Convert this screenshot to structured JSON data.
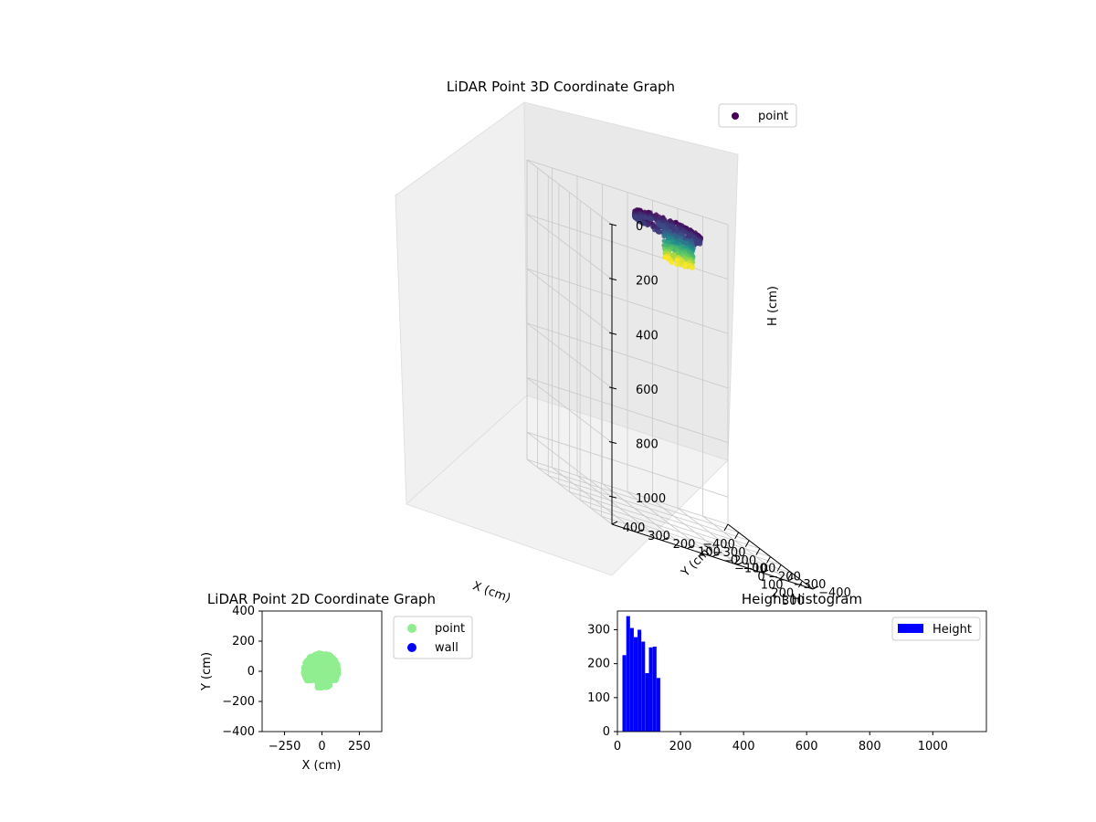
{
  "chart_data": [
    {
      "type": "scatter",
      "title": "LiDAR Point 3D Coordinate Graph",
      "xlabel": "X (cm)",
      "ylabel": "Y (cm)",
      "zlabel": "H (cm)",
      "xlim": [
        -400,
        400
      ],
      "ylim": [
        -400,
        400
      ],
      "zlim": [
        1100,
        0
      ],
      "x_ticks": [
        -400,
        -300,
        -200,
        -100,
        0,
        100,
        200,
        300
      ],
      "y_ticks": [
        -400,
        -300,
        -200,
        -100,
        0,
        100,
        200,
        300,
        400
      ],
      "z_ticks": [
        0,
        200,
        400,
        600,
        800,
        1000
      ],
      "grid": true,
      "legend": {
        "placement": "top-right",
        "entries": [
          {
            "label": "point",
            "color": "#440154"
          }
        ]
      },
      "colormap": "viridis",
      "series": [
        {
          "name": "point",
          "shape": "ring-with-stem",
          "x_range": [
            -130,
            130
          ],
          "y_range": [
            -100,
            120
          ],
          "h_range": [
            0,
            130
          ]
        }
      ]
    },
    {
      "type": "scatter",
      "title": "LiDAR Point 2D Coordinate Graph",
      "xlabel": "X (cm)",
      "ylabel": "Y (cm)",
      "xlim": [
        -400,
        400
      ],
      "ylim": [
        -400,
        400
      ],
      "x_ticks": [
        -250,
        0,
        250
      ],
      "y_ticks": [
        -400,
        -200,
        0,
        200,
        400
      ],
      "grid": false,
      "legend": {
        "placement": "outside-right",
        "entries": [
          {
            "label": "point",
            "color": "#90ee90"
          },
          {
            "label": "wall",
            "color": "#0000ff"
          }
        ]
      },
      "series": [
        {
          "name": "point",
          "color": "#90ee90",
          "x_range": [
            -130,
            120
          ],
          "y_range": [
            -110,
            125
          ]
        },
        {
          "name": "wall",
          "color": "#0000ff",
          "x": [],
          "y": []
        }
      ]
    },
    {
      "type": "bar",
      "title": "Height Histogram",
      "xlabel": "",
      "ylabel": "",
      "xlim": [
        0,
        1170
      ],
      "ylim": [
        0,
        355
      ],
      "x_ticks": [
        0,
        200,
        400,
        600,
        800,
        1000
      ],
      "y_ticks": [
        0,
        100,
        200,
        300
      ],
      "legend": {
        "placement": "top-right",
        "entries": [
          {
            "label": "Height",
            "color": "#0000ff"
          }
        ]
      },
      "series": [
        {
          "name": "Height",
          "color": "#0000ff",
          "bin_edges": [
            16,
            28,
            40,
            52,
            64,
            76,
            88,
            100,
            112,
            124
          ],
          "values": [
            225,
            340,
            305,
            278,
            300,
            265,
            172,
            248,
            250,
            158
          ]
        }
      ]
    }
  ]
}
